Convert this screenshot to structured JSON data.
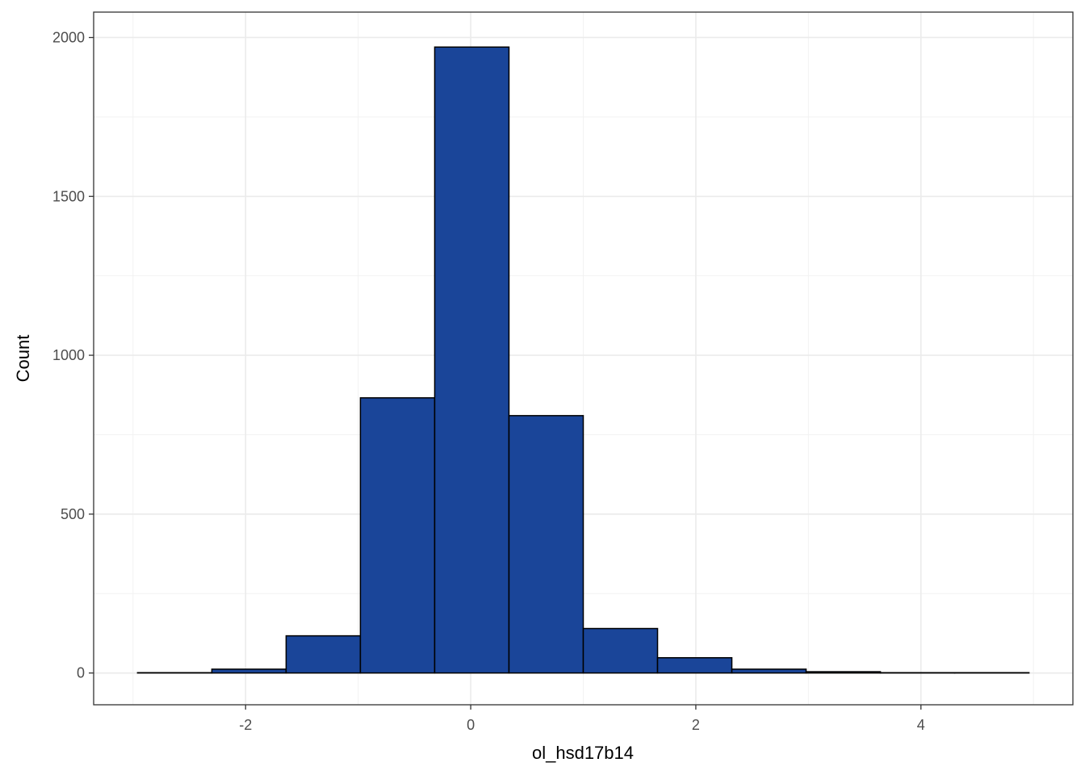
{
  "chart_data": {
    "type": "bar",
    "subtype": "histogram",
    "xlabel": "ol_hsd17b14",
    "ylabel": "Count",
    "xlim": [
      -3.35,
      5.35
    ],
    "ylim": [
      -100,
      2080
    ],
    "x_ticks": [
      -2,
      0,
      2,
      4
    ],
    "x_tick_labels": [
      "-2",
      "0",
      "2",
      "4"
    ],
    "y_ticks": [
      0,
      500,
      1000,
      1500,
      2000
    ],
    "y_tick_labels": [
      "0",
      "500",
      "1000",
      "1500",
      "2000"
    ],
    "grid": true,
    "bar_fill": "#1a4599",
    "bar_stroke": "#000000",
    "bins": [
      {
        "x0": -2.96,
        "x1": -2.3,
        "count": 1
      },
      {
        "x0": -2.3,
        "x1": -1.64,
        "count": 12
      },
      {
        "x0": -1.64,
        "x1": -0.98,
        "count": 117
      },
      {
        "x0": -0.98,
        "x1": -0.32,
        "count": 866
      },
      {
        "x0": -0.32,
        "x1": 0.34,
        "count": 1970
      },
      {
        "x0": 0.34,
        "x1": 1.0,
        "count": 810
      },
      {
        "x0": 1.0,
        "x1": 1.66,
        "count": 140
      },
      {
        "x0": 1.66,
        "x1": 2.32,
        "count": 48
      },
      {
        "x0": 2.32,
        "x1": 2.98,
        "count": 12
      },
      {
        "x0": 2.98,
        "x1": 3.64,
        "count": 4
      },
      {
        "x0": 3.64,
        "x1": 4.3,
        "count": 1
      },
      {
        "x0": 4.3,
        "x1": 4.96,
        "count": 1
      }
    ]
  }
}
